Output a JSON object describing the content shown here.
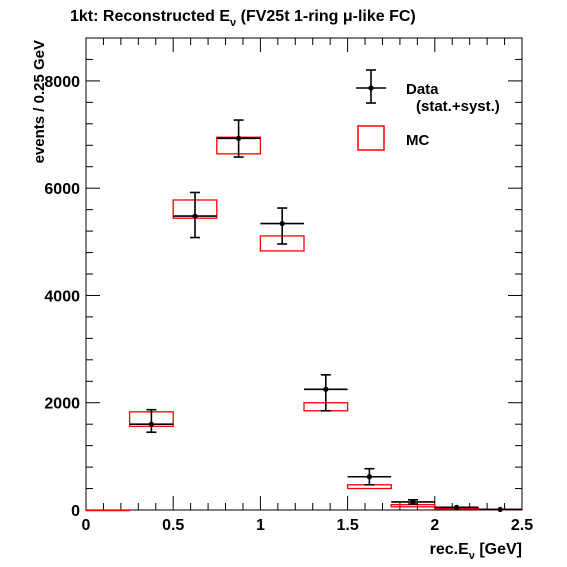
{
  "chart_data": {
    "type": "bar",
    "title_main": "1kt: Reconstructed E",
    "title_sub": "ν",
    "title_rest": " (FV25t 1-ring μ-like FC)",
    "xlabel_main": "rec.E",
    "xlabel_sub": "ν",
    "xlabel_rest": " [GeV]",
    "ylabel": "events / 0.25 GeV",
    "xlim": [
      0,
      2.5
    ],
    "ylim": [
      0,
      8800
    ],
    "x_ticks": [
      0,
      0.5,
      1,
      1.5,
      2,
      2.5
    ],
    "x_tick_labels": [
      "0",
      "0.5",
      "1",
      "1.5",
      "2",
      "2.5"
    ],
    "y_ticks": [
      0,
      2000,
      4000,
      6000,
      8000
    ],
    "y_tick_labels": [
      "0",
      "2000",
      "4000",
      "6000",
      "8000"
    ],
    "bin_width": 0.25,
    "series": [
      {
        "name": "Data",
        "note": "(stat.+syst.)",
        "x": [
          0.375,
          0.625,
          0.875,
          1.125,
          1.375,
          1.625,
          1.875,
          2.125,
          2.375
        ],
        "values": [
          1600,
          5480,
          6930,
          5340,
          2250,
          620,
          150,
          50,
          10
        ],
        "err_low": [
          150,
          400,
          350,
          380,
          400,
          150,
          40,
          20,
          5
        ],
        "err_high": [
          270,
          440,
          340,
          290,
          270,
          150,
          40,
          20,
          5
        ],
        "color": "#000000"
      },
      {
        "name": "MC",
        "x": [
          0.125,
          0.375,
          0.625,
          0.875,
          1.125,
          1.375,
          1.625,
          1.875,
          2.125,
          2.375
        ],
        "low": [
          0,
          1560,
          5440,
          6640,
          4830,
          1850,
          400,
          60,
          20,
          5
        ],
        "high": [
          0,
          1830,
          5780,
          6950,
          5110,
          2000,
          470,
          100,
          40,
          15
        ],
        "color": "#ff0000"
      }
    ],
    "legend_position": "top-right"
  }
}
